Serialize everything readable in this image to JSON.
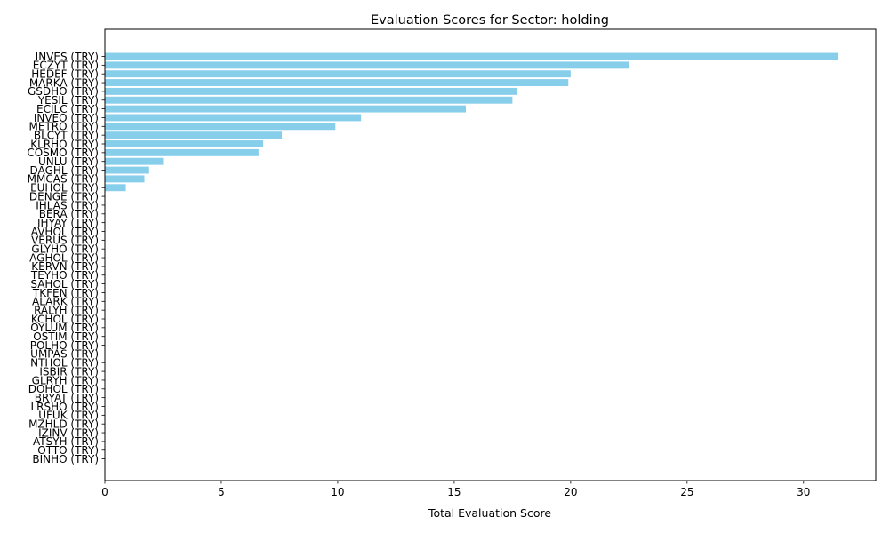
{
  "chart_data": {
    "type": "bar",
    "orientation": "horizontal",
    "title": "Evaluation Scores for Sector: holding",
    "xlabel": "Total Evaluation Score",
    "ylabel": "",
    "xlim": [
      0,
      33.1
    ],
    "xticks": [
      0,
      5,
      10,
      15,
      20,
      25,
      30
    ],
    "grid": false,
    "bar_color": "#87ceeb",
    "categories": [
      "INVES (TRY)",
      "ECZYT (TRY)",
      "HEDEF (TRY)",
      "MARKA (TRY)",
      "GSDHO (TRY)",
      "YESIL (TRY)",
      "ECILC (TRY)",
      "INVEO (TRY)",
      "METRO (TRY)",
      "BLCYT (TRY)",
      "KLRHO (TRY)",
      "COSMO (TRY)",
      "UNLU (TRY)",
      "DAGHL (TRY)",
      "MMCAS (TRY)",
      "EUHOL (TRY)",
      "DENGE (TRY)",
      "IHLAS (TRY)",
      "BERA (TRY)",
      "IHYAY (TRY)",
      "AVHOL (TRY)",
      "VERUS (TRY)",
      "GLYHO (TRY)",
      "AGHOL (TRY)",
      "KERVN (TRY)",
      "TEYHO (TRY)",
      "SAHOL (TRY)",
      "TKFEN (TRY)",
      "ALARK (TRY)",
      "RALYH (TRY)",
      "KCHOL (TRY)",
      "OYLUM (TRY)",
      "OSTIM (TRY)",
      "POLHO (TRY)",
      "UMPAS (TRY)",
      "NTHOL (TRY)",
      "ISBIR (TRY)",
      "GLRYH (TRY)",
      "DOHOL (TRY)",
      "BRYAT (TRY)",
      "LRSHO (TRY)",
      "UFUK (TRY)",
      "MZHLD (TRY)",
      "IZINV (TRY)",
      "ATSYH (TRY)",
      "OTTO (TRY)",
      "BINHO (TRY)"
    ],
    "values": [
      31.5,
      22.5,
      20.0,
      19.9,
      17.7,
      17.5,
      15.5,
      11.0,
      9.9,
      7.6,
      6.8,
      6.6,
      2.5,
      1.9,
      1.7,
      0.9,
      0,
      0,
      0,
      0,
      0,
      0,
      0,
      0,
      0,
      0,
      0,
      0,
      0,
      0,
      0,
      0,
      0,
      0,
      0,
      0,
      0,
      0,
      0,
      0,
      0,
      0,
      0,
      0,
      0,
      0,
      0
    ]
  }
}
